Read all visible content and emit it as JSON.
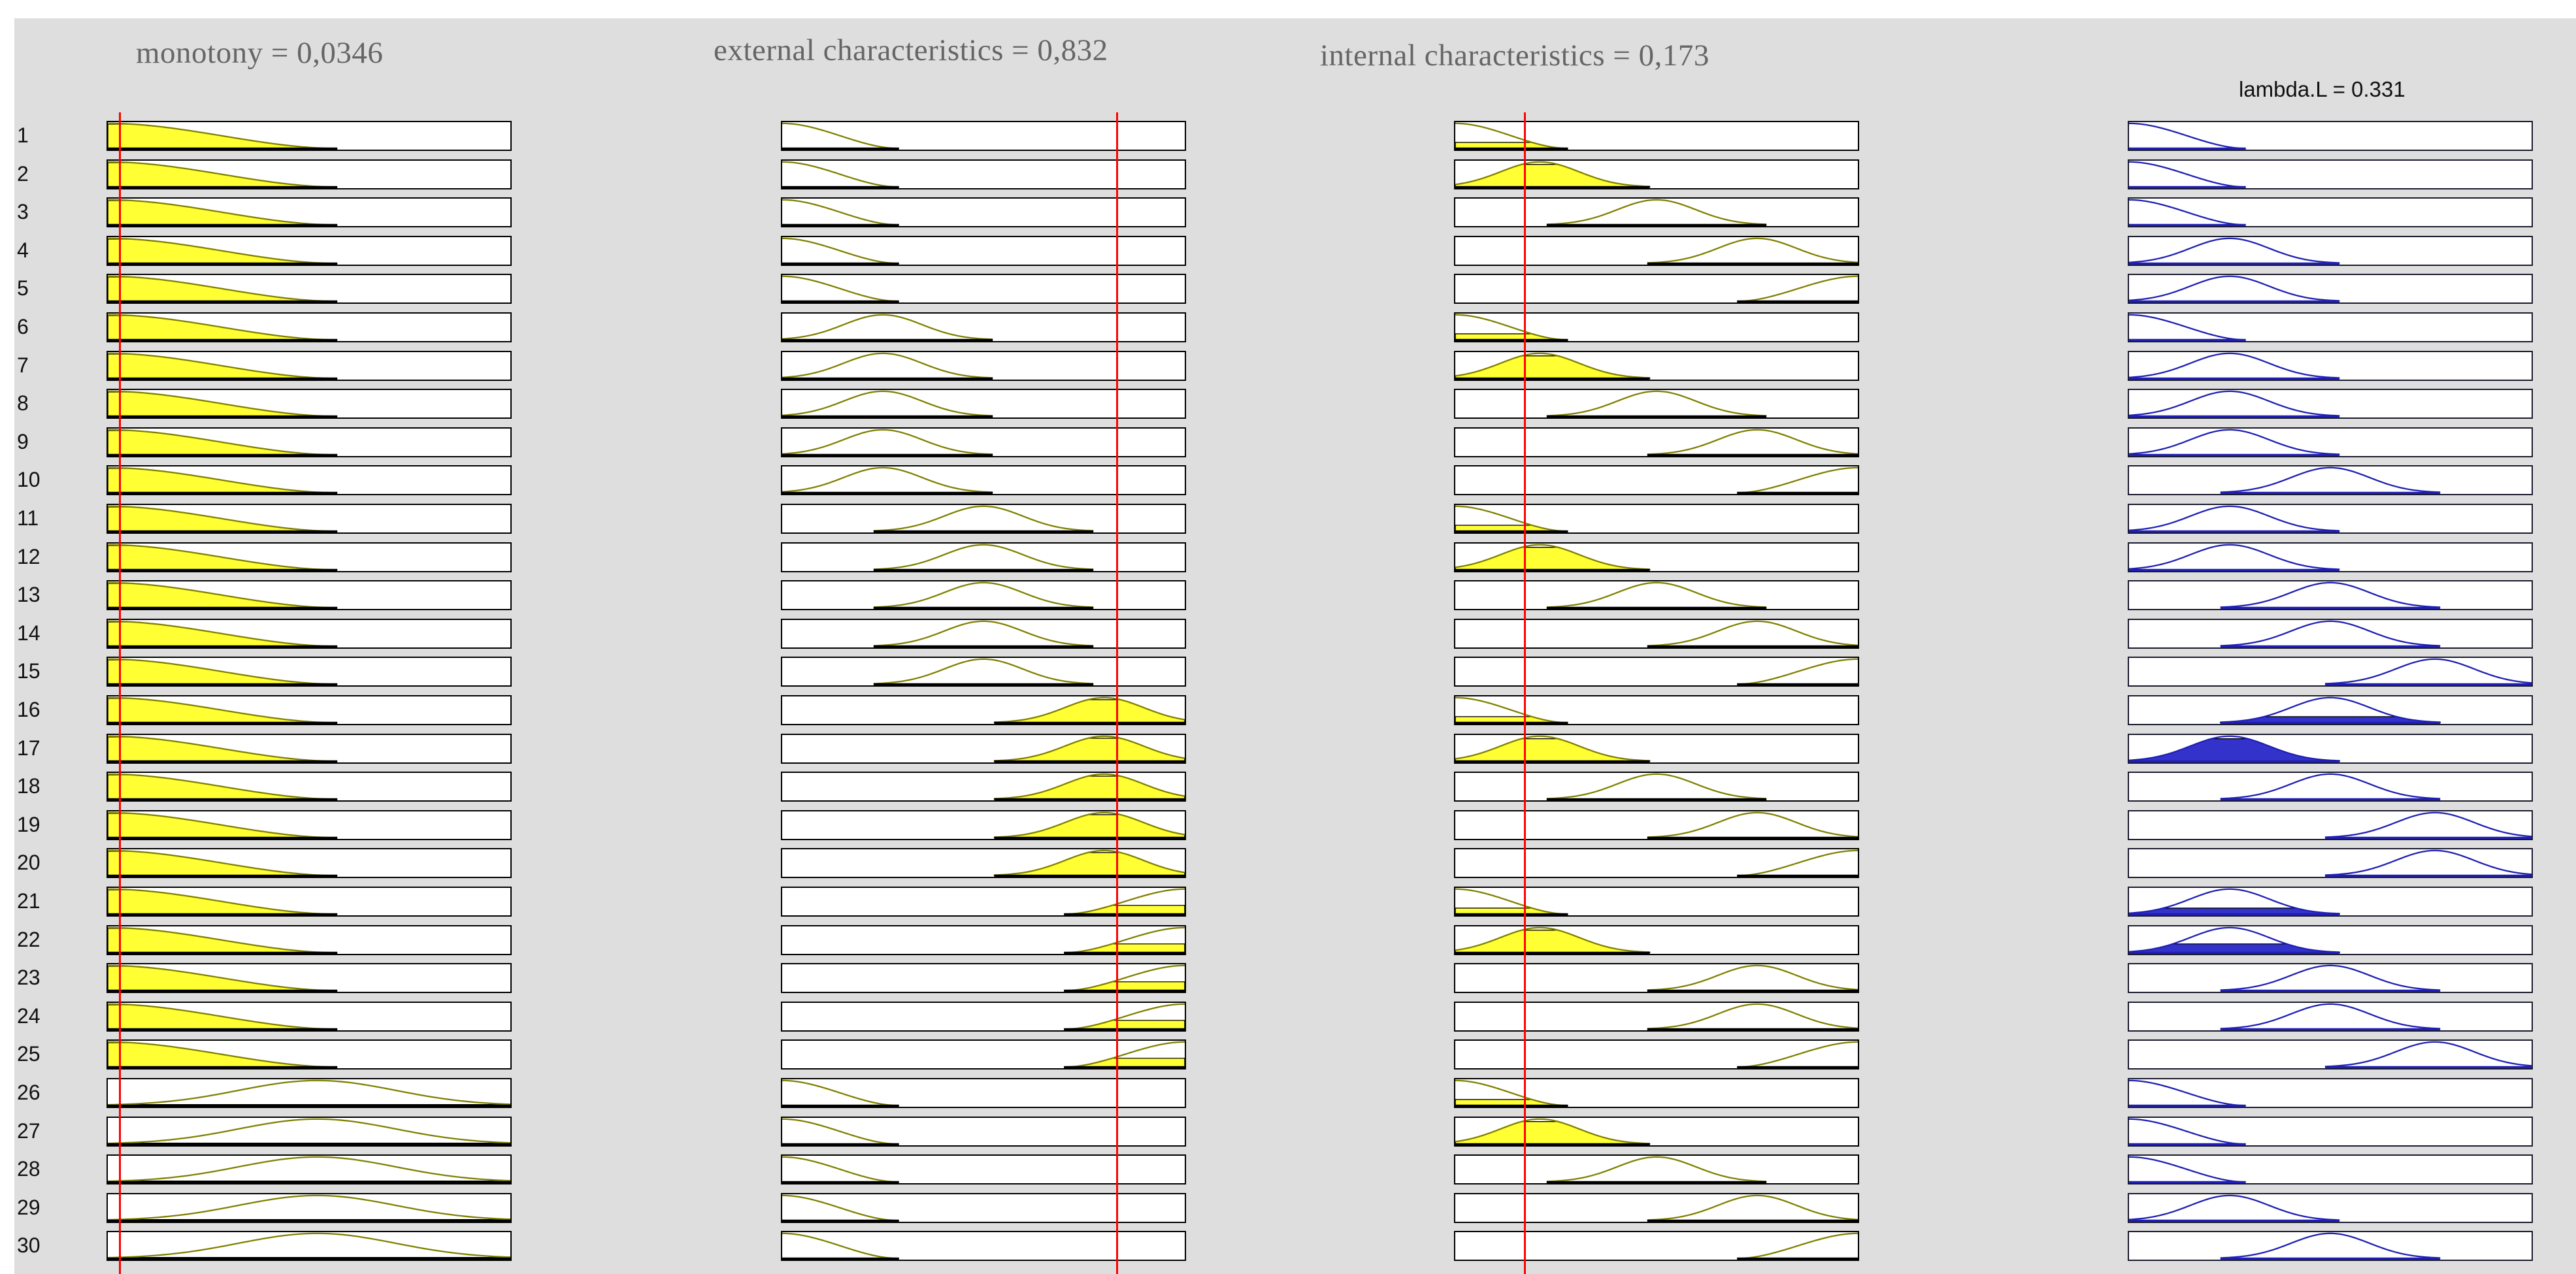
{
  "window": {
    "inputs": [
      {
        "name": "monotony",
        "value_text": "monotony = 0,0346",
        "value": 0.0346
      },
      {
        "name": "external characteristics",
        "value_text": "external characteristics = 0,832",
        "value": 0.832
      },
      {
        "name": "internal characteristics",
        "value_text": "internal characteristics = 0,173",
        "value": 0.173
      }
    ],
    "output": {
      "name": "lambda.L",
      "value_text": "lambda.L = 0.331",
      "value": 0.331
    }
  },
  "colors": {
    "background": "#dedede",
    "input_fill": "#ffff33",
    "input_curve": "#808000",
    "output_fill": "#3333cc",
    "output_curve": "#1f1fb4",
    "cursor_line": "#ff0000"
  },
  "rules": [
    {
      "num": "1",
      "mf": [
        1,
        1,
        1,
        1
      ],
      "fire": [
        0.97,
        0,
        0.24,
        0
      ]
    },
    {
      "num": "2",
      "mf": [
        1,
        1,
        2,
        1
      ],
      "fire": [
        0.97,
        0,
        0.9,
        0
      ]
    },
    {
      "num": "3",
      "mf": [
        1,
        1,
        3,
        1
      ],
      "fire": [
        0.97,
        0,
        0,
        0
      ]
    },
    {
      "num": "4",
      "mf": [
        1,
        1,
        4,
        2
      ],
      "fire": [
        0.97,
        0,
        0,
        0
      ]
    },
    {
      "num": "5",
      "mf": [
        1,
        1,
        5,
        2
      ],
      "fire": [
        0.97,
        0,
        0,
        0
      ]
    },
    {
      "num": "6",
      "mf": [
        1,
        2,
        1,
        1
      ],
      "fire": [
        0.97,
        0,
        0.24,
        0
      ]
    },
    {
      "num": "7",
      "mf": [
        1,
        2,
        2,
        2
      ],
      "fire": [
        0.97,
        0,
        0.9,
        0
      ]
    },
    {
      "num": "8",
      "mf": [
        1,
        2,
        3,
        2
      ],
      "fire": [
        0.97,
        0,
        0,
        0
      ]
    },
    {
      "num": "9",
      "mf": [
        1,
        2,
        4,
        2
      ],
      "fire": [
        0.97,
        0,
        0,
        0
      ]
    },
    {
      "num": "10",
      "mf": [
        1,
        2,
        5,
        3
      ],
      "fire": [
        0.97,
        0,
        0,
        0
      ]
    },
    {
      "num": "11",
      "mf": [
        1,
        3,
        1,
        2
      ],
      "fire": [
        0.97,
        0,
        0.24,
        0
      ]
    },
    {
      "num": "12",
      "mf": [
        1,
        3,
        2,
        2
      ],
      "fire": [
        0.97,
        0,
        0.9,
        0
      ]
    },
    {
      "num": "13",
      "mf": [
        1,
        3,
        3,
        3
      ],
      "fire": [
        0.97,
        0,
        0,
        0
      ]
    },
    {
      "num": "14",
      "mf": [
        1,
        3,
        4,
        3
      ],
      "fire": [
        0.97,
        0,
        0,
        0
      ]
    },
    {
      "num": "15",
      "mf": [
        1,
        3,
        5,
        4
      ],
      "fire": [
        0.97,
        0,
        0,
        0
      ]
    },
    {
      "num": "16",
      "mf": [
        1,
        4,
        1,
        3
      ],
      "fire": [
        0.97,
        0.92,
        0.24,
        0.24
      ]
    },
    {
      "num": "17",
      "mf": [
        1,
        4,
        2,
        2
      ],
      "fire": [
        0.97,
        0.92,
        0.9,
        0.9
      ]
    },
    {
      "num": "18",
      "mf": [
        1,
        4,
        3,
        3
      ],
      "fire": [
        0.97,
        0.92,
        0,
        0
      ]
    },
    {
      "num": "19",
      "mf": [
        1,
        4,
        4,
        4
      ],
      "fire": [
        0.97,
        0.92,
        0,
        0
      ]
    },
    {
      "num": "20",
      "mf": [
        1,
        4,
        5,
        4
      ],
      "fire": [
        0.97,
        0.92,
        0,
        0
      ]
    },
    {
      "num": "21",
      "mf": [
        1,
        5,
        1,
        2
      ],
      "fire": [
        0.97,
        0.35,
        0.24,
        0.24
      ]
    },
    {
      "num": "22",
      "mf": [
        1,
        5,
        2,
        2
      ],
      "fire": [
        0.97,
        0.35,
        0.9,
        0.35
      ]
    },
    {
      "num": "23",
      "mf": [
        1,
        5,
        4,
        3
      ],
      "fire": [
        0.97,
        0.35,
        0,
        0
      ]
    },
    {
      "num": "24",
      "mf": [
        1,
        5,
        4,
        3
      ],
      "fire": [
        0.97,
        0.35,
        0,
        0
      ]
    },
    {
      "num": "25",
      "mf": [
        1,
        5,
        5,
        4
      ],
      "fire": [
        0.97,
        0.35,
        0,
        0
      ]
    },
    {
      "num": "26",
      "mf": [
        2,
        1,
        1,
        1
      ],
      "fire": [
        0.04,
        0,
        0.24,
        0
      ]
    },
    {
      "num": "27",
      "mf": [
        2,
        1,
        2,
        1
      ],
      "fire": [
        0.04,
        0,
        0.9,
        0
      ]
    },
    {
      "num": "28",
      "mf": [
        2,
        1,
        3,
        1
      ],
      "fire": [
        0.04,
        0,
        0,
        0
      ]
    },
    {
      "num": "29",
      "mf": [
        2,
        1,
        4,
        2
      ],
      "fire": [
        0.04,
        0,
        0,
        0
      ]
    },
    {
      "num": "30",
      "mf": [
        2,
        1,
        5,
        3
      ],
      "fire": [
        0.04,
        0,
        0,
        0
      ]
    }
  ]
}
